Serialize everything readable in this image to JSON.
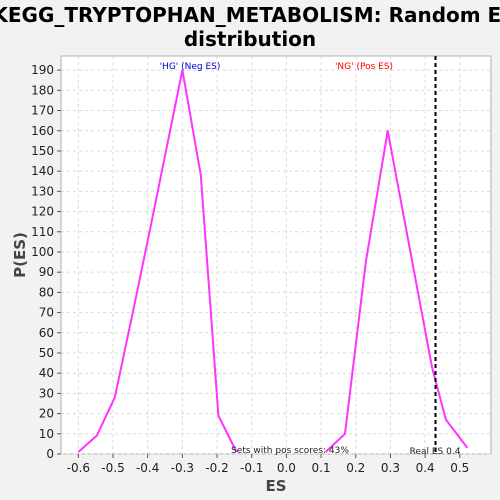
{
  "chart_data": {
    "type": "line",
    "title_line1": "KEGG_TRYPTOPHAN_METABOLISM: Random ES",
    "title_line2": "distribution",
    "xlabel": "ES",
    "ylabel": "P(ES)",
    "xlim": [
      -0.65,
      0.59
    ],
    "ylim": [
      0,
      197
    ],
    "xticks": [
      -0.6,
      -0.5,
      -0.4,
      -0.3,
      -0.2,
      -0.1,
      0.0,
      0.1,
      0.2,
      0.3,
      0.4,
      0.5
    ],
    "xtick_labels": [
      "-0.6",
      "-0.5",
      "-0.4",
      "-0.3",
      "-0.2",
      "-0.1",
      "0.0",
      "0.1",
      "0.2",
      "0.3",
      "0.4",
      "0.5"
    ],
    "yticks": [
      0,
      10,
      20,
      30,
      40,
      50,
      60,
      70,
      80,
      90,
      100,
      110,
      120,
      130,
      140,
      150,
      160,
      170,
      180,
      190
    ],
    "grid": true,
    "series": [
      {
        "color": "#ff33ff",
        "x": [
          -0.6,
          -0.547,
          -0.495,
          -0.443,
          -0.391,
          -0.3,
          -0.247,
          -0.196,
          -0.144
        ],
        "y": [
          1,
          9,
          28,
          70,
          113,
          190,
          138,
          19,
          1
        ]
      },
      {
        "color": "#ff33ff",
        "x": [
          0.113,
          0.169,
          0.229,
          0.292,
          0.42,
          0.46,
          0.522
        ],
        "y": [
          1,
          10,
          95,
          160,
          43,
          17,
          3
        ]
      }
    ],
    "real_es": {
      "x": 0.43,
      "label": "Real ES 0.4",
      "color": "#000000"
    },
    "annotations": {
      "neg": {
        "text": "'HG' (Neg ES)",
        "color": "#0000cc"
      },
      "pos": {
        "text": "'NG' (Pos ES)",
        "color": "#ff0000"
      },
      "sets": {
        "text": "Sets with pos scores: 43%"
      }
    }
  }
}
